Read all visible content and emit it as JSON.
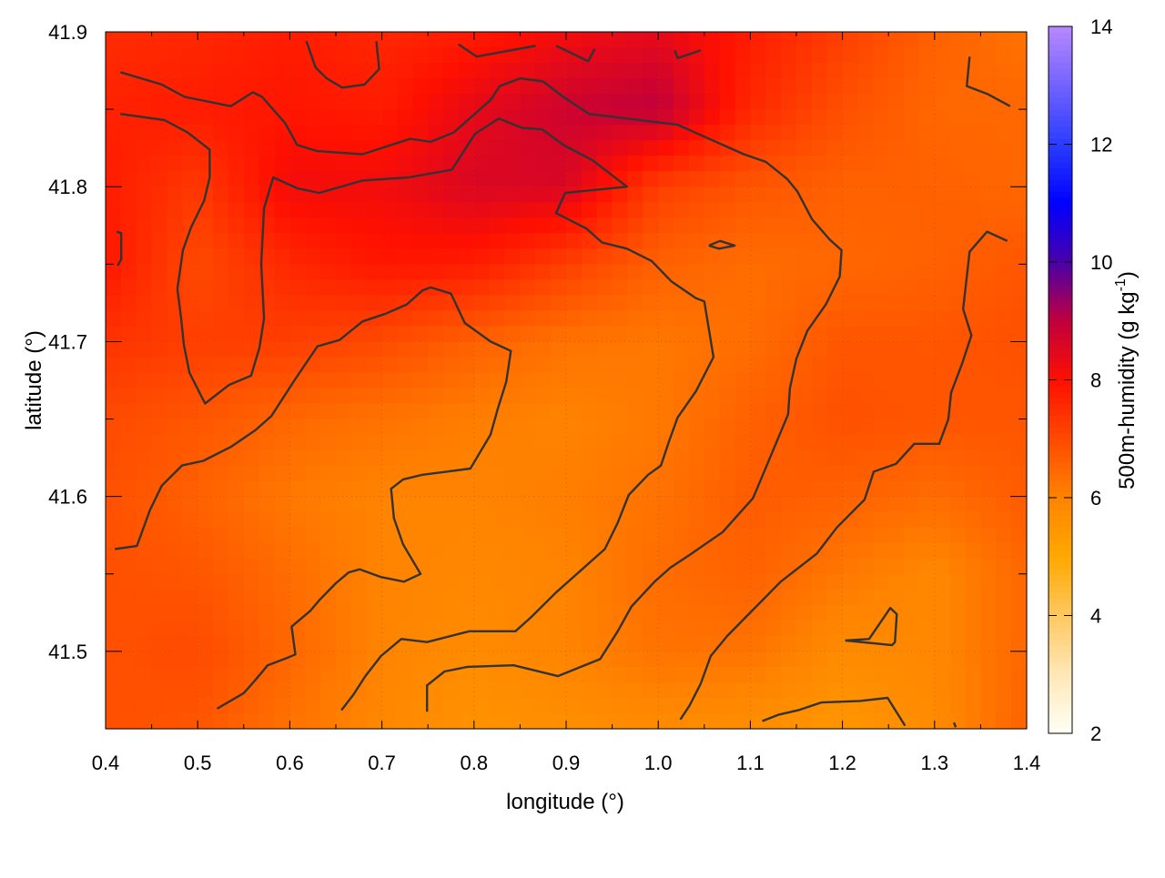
{
  "chart_data": {
    "type": "heatmap",
    "title": "",
    "xlabel": "longitude (°)",
    "ylabel": "latitude (°)",
    "xlim": [
      0.4,
      1.4
    ],
    "ylim": [
      41.45,
      41.9
    ],
    "xticks": [
      "0.4",
      "0.5",
      "0.6",
      "0.7",
      "0.8",
      "0.9",
      "1.0",
      "1.1",
      "1.2",
      "1.3",
      "1.4"
    ],
    "yticks": [
      "41.5",
      "41.6",
      "41.7",
      "41.8",
      "41.9"
    ],
    "grid": true,
    "colorbar": {
      "label_main": "500m-humidity (g kg",
      "label_sup": "-1",
      "label_end": ")",
      "range": [
        2,
        14
      ],
      "ticks": [
        "2",
        "4",
        "6",
        "8",
        "10",
        "12",
        "14"
      ],
      "stops": [
        {
          "v": 2,
          "c": "#fffff6"
        },
        {
          "v": 3,
          "c": "#ffe8b8"
        },
        {
          "v": 4,
          "c": "#ffc860"
        },
        {
          "v": 5,
          "c": "#ffa800"
        },
        {
          "v": 6,
          "c": "#ff8400"
        },
        {
          "v": 7,
          "c": "#ff4a00"
        },
        {
          "v": 8,
          "c": "#ff1000"
        },
        {
          "v": 9,
          "c": "#c0003c"
        },
        {
          "v": 10,
          "c": "#4a00a8"
        },
        {
          "v": 11,
          "c": "#0000ff"
        },
        {
          "v": 12,
          "c": "#2a3cff"
        },
        {
          "v": 14,
          "c": "#b888ff"
        }
      ]
    },
    "grid_lon": [
      0.4,
      0.5,
      0.6,
      0.7,
      0.8,
      0.9,
      1.0,
      1.1,
      1.2,
      1.3,
      1.4
    ],
    "grid_lat": [
      41.9,
      41.85,
      41.8,
      41.75,
      41.7,
      41.65,
      41.6,
      41.55,
      41.5,
      41.45
    ],
    "values": [
      [
        7.5,
        7.6,
        7.8,
        7.6,
        7.8,
        8.2,
        8.4,
        7.8,
        7.2,
        6.6,
        6.3
      ],
      [
        7.7,
        7.8,
        7.9,
        7.8,
        8.4,
        8.8,
        9.0,
        7.6,
        6.9,
        6.5,
        6.5
      ],
      [
        7.8,
        7.3,
        8.2,
        8.2,
        8.6,
        8.6,
        7.2,
        6.8,
        6.6,
        6.6,
        6.5
      ],
      [
        7.9,
        7.0,
        7.6,
        7.9,
        7.8,
        7.2,
        6.6,
        6.4,
        6.5,
        6.6,
        6.8
      ],
      [
        7.4,
        7.2,
        7.2,
        7.0,
        6.6,
        6.3,
        6.2,
        6.4,
        6.8,
        6.8,
        6.9
      ],
      [
        7.0,
        6.8,
        6.5,
        6.3,
        6.1,
        6.0,
        6.2,
        6.6,
        6.9,
        6.8,
        6.8
      ],
      [
        6.9,
        6.6,
        6.2,
        6.0,
        6.0,
        6.1,
        6.3,
        6.7,
        6.6,
        6.4,
        6.7
      ],
      [
        6.9,
        6.8,
        6.4,
        6.0,
        5.9,
        6.0,
        6.4,
        6.6,
        6.2,
        5.9,
        6.5
      ],
      [
        6.9,
        7.0,
        6.5,
        6.0,
        5.8,
        6.0,
        6.3,
        6.3,
        5.8,
        5.9,
        6.5
      ],
      [
        6.9,
        6.8,
        6.3,
        5.9,
        5.6,
        5.7,
        5.8,
        5.7,
        5.5,
        5.8,
        6.6
      ]
    ],
    "contour_color": "#333333",
    "contours": [
      [
        [
          0.416,
          41.874
        ],
        [
          0.461,
          41.866
        ],
        [
          0.486,
          41.858
        ],
        [
          0.536,
          41.852
        ],
        [
          0.56,
          41.861
        ],
        [
          0.57,
          41.858
        ],
        [
          0.595,
          41.841
        ],
        [
          0.608,
          41.827
        ],
        [
          0.63,
          41.823
        ],
        [
          0.679,
          41.821
        ],
        [
          0.731,
          41.831
        ],
        [
          0.753,
          41.829
        ],
        [
          0.778,
          41.835
        ],
        [
          0.818,
          41.856
        ],
        [
          0.828,
          41.865
        ],
        [
          0.85,
          41.87
        ],
        [
          0.875,
          41.868
        ],
        [
          0.897,
          41.858
        ],
        [
          0.925,
          41.847
        ],
        [
          1.021,
          41.84
        ],
        [
          1.093,
          41.821
        ],
        [
          1.117,
          41.816
        ],
        [
          1.14,
          41.805
        ],
        [
          1.151,
          41.797
        ],
        [
          1.167,
          41.779
        ],
        [
          1.186,
          41.766
        ],
        [
          1.199,
          41.759
        ],
        [
          1.197,
          41.742
        ],
        [
          1.182,
          41.724
        ],
        [
          1.162,
          41.707
        ],
        [
          1.15,
          41.689
        ],
        [
          1.143,
          41.67
        ],
        [
          1.141,
          41.653
        ],
        [
          1.115,
          41.616
        ],
        [
          1.103,
          41.599
        ],
        [
          1.07,
          41.577
        ],
        [
          1.036,
          41.563
        ],
        [
          1.013,
          41.554
        ],
        [
          0.996,
          41.545
        ],
        [
          0.971,
          41.529
        ],
        [
          0.956,
          41.513
        ],
        [
          0.937,
          41.495
        ],
        [
          0.891,
          41.484
        ],
        [
          0.843,
          41.491
        ],
        [
          0.793,
          41.49
        ],
        [
          0.768,
          41.487
        ],
        [
          0.749,
          41.478
        ],
        [
          0.749,
          41.461
        ]
      ],
      [
        [
          0.416,
          41.847
        ],
        [
          0.464,
          41.843
        ],
        [
          0.489,
          41.835
        ],
        [
          0.513,
          41.824
        ],
        [
          0.513,
          41.806
        ],
        [
          0.507,
          41.791
        ],
        [
          0.493,
          41.774
        ],
        [
          0.484,
          41.759
        ],
        [
          0.478,
          41.734
        ],
        [
          0.482,
          41.715
        ],
        [
          0.485,
          41.698
        ],
        [
          0.491,
          41.68
        ],
        [
          0.508,
          41.66
        ],
        [
          0.534,
          41.672
        ],
        [
          0.558,
          41.678
        ],
        [
          0.567,
          41.696
        ],
        [
          0.572,
          41.715
        ],
        [
          0.569,
          41.75
        ],
        [
          0.572,
          41.786
        ],
        [
          0.582,
          41.806
        ],
        [
          0.608,
          41.799
        ],
        [
          0.632,
          41.796
        ],
        [
          0.679,
          41.804
        ],
        [
          0.729,
          41.806
        ],
        [
          0.776,
          41.811
        ],
        [
          0.801,
          41.834
        ],
        [
          0.827,
          41.844
        ],
        [
          0.852,
          41.838
        ],
        [
          0.874,
          41.837
        ],
        [
          0.897,
          41.827
        ],
        [
          0.929,
          41.817
        ],
        [
          0.966,
          41.8
        ],
        [
          0.899,
          41.796
        ],
        [
          0.889,
          41.783
        ],
        [
          0.922,
          41.773
        ],
        [
          0.939,
          41.764
        ],
        [
          0.966,
          41.76
        ],
        [
          0.993,
          41.752
        ],
        [
          1.014,
          41.739
        ],
        [
          1.041,
          41.728
        ],
        [
          1.05,
          41.726
        ],
        [
          1.06,
          41.69
        ],
        [
          1.041,
          41.668
        ],
        [
          1.021,
          41.651
        ],
        [
          1.012,
          41.636
        ],
        [
          1.003,
          41.62
        ],
        [
          0.989,
          41.614
        ],
        [
          0.968,
          41.601
        ],
        [
          0.956,
          41.583
        ],
        [
          0.942,
          41.566
        ],
        [
          0.889,
          41.538
        ],
        [
          0.862,
          41.522
        ],
        [
          0.845,
          41.513
        ],
        [
          0.795,
          41.513
        ],
        [
          0.749,
          41.506
        ],
        [
          0.721,
          41.508
        ],
        [
          0.699,
          41.497
        ],
        [
          0.682,
          41.484
        ],
        [
          0.669,
          41.472
        ],
        [
          0.656,
          41.462
        ]
      ],
      [
        [
          0.41,
          41.566
        ],
        [
          0.434,
          41.568
        ],
        [
          0.448,
          41.591
        ],
        [
          0.461,
          41.607
        ],
        [
          0.483,
          41.62
        ],
        [
          0.506,
          41.623
        ],
        [
          0.536,
          41.632
        ],
        [
          0.563,
          41.643
        ],
        [
          0.58,
          41.652
        ],
        [
          0.605,
          41.675
        ],
        [
          0.63,
          41.697
        ],
        [
          0.654,
          41.701
        ],
        [
          0.679,
          41.713
        ],
        [
          0.704,
          41.718
        ],
        [
          0.727,
          41.724
        ],
        [
          0.744,
          41.733
        ],
        [
          0.753,
          41.735
        ],
        [
          0.775,
          41.731
        ],
        [
          0.79,
          41.712
        ],
        [
          0.818,
          41.7
        ],
        [
          0.84,
          41.694
        ],
        [
          0.835,
          41.674
        ],
        [
          0.826,
          41.657
        ],
        [
          0.818,
          41.64
        ],
        [
          0.796,
          41.618
        ],
        [
          0.77,
          41.616
        ],
        [
          0.744,
          41.614
        ],
        [
          0.723,
          41.611
        ],
        [
          0.71,
          41.605
        ],
        [
          0.713,
          41.586
        ],
        [
          0.723,
          41.569
        ],
        [
          0.742,
          41.55
        ],
        [
          0.724,
          41.545
        ],
        [
          0.699,
          41.548
        ],
        [
          0.676,
          41.553
        ],
        [
          0.664,
          41.551
        ],
        [
          0.65,
          41.544
        ],
        [
          0.632,
          41.533
        ],
        [
          0.622,
          41.526
        ],
        [
          0.602,
          41.516
        ],
        [
          0.606,
          41.498
        ],
        [
          0.598,
          41.496
        ],
        [
          0.576,
          41.491
        ],
        [
          0.562,
          41.481
        ],
        [
          0.55,
          41.473
        ],
        [
          0.521,
          41.463
        ]
      ],
      [
        [
          1.379,
          41.765
        ],
        [
          1.357,
          41.771
        ],
        [
          1.338,
          41.758
        ],
        [
          1.331,
          41.721
        ],
        [
          1.34,
          41.704
        ],
        [
          1.33,
          41.686
        ],
        [
          1.318,
          41.667
        ],
        [
          1.315,
          41.65
        ],
        [
          1.305,
          41.634
        ],
        [
          1.278,
          41.634
        ],
        [
          1.258,
          41.621
        ],
        [
          1.234,
          41.616
        ],
        [
          1.224,
          41.598
        ],
        [
          1.194,
          41.58
        ],
        [
          1.172,
          41.563
        ],
        [
          1.133,
          41.545
        ],
        [
          1.095,
          41.522
        ],
        [
          1.075,
          41.51
        ],
        [
          1.057,
          41.497
        ],
        [
          1.046,
          41.479
        ],
        [
          1.034,
          41.465
        ],
        [
          1.024,
          41.456
        ]
      ],
      [
        [
          0.618,
          41.894
        ],
        [
          0.628,
          41.877
        ],
        [
          0.64,
          41.87
        ],
        [
          0.657,
          41.864
        ],
        [
          0.681,
          41.866
        ],
        [
          0.697,
          41.876
        ],
        [
          0.694,
          41.894
        ]
      ],
      [
        [
          0.783,
          41.892
        ],
        [
          0.803,
          41.884
        ],
        [
          0.867,
          41.891
        ]
      ],
      [
        [
          0.889,
          41.891
        ],
        [
          0.924,
          41.881
        ],
        [
          0.931,
          41.889
        ]
      ],
      [
        [
          1.018,
          41.888
        ],
        [
          1.021,
          41.883
        ],
        [
          1.046,
          41.888
        ]
      ],
      [
        [
          1.338,
          41.884
        ],
        [
          1.335,
          41.865
        ],
        [
          1.357,
          41.86
        ],
        [
          1.382,
          41.852
        ]
      ],
      [
        [
          0.412,
          41.771
        ],
        [
          0.417,
          41.77
        ],
        [
          0.417,
          41.753
        ],
        [
          0.413,
          41.749
        ]
      ],
      [
        [
          1.055,
          41.762
        ],
        [
          1.067,
          41.765
        ],
        [
          1.083,
          41.762
        ],
        [
          1.066,
          41.76
        ],
        [
          1.055,
          41.762
        ]
      ],
      [
        [
          1.203,
          41.507
        ],
        [
          1.229,
          41.508
        ],
        [
          1.252,
          41.528
        ],
        [
          1.259,
          41.524
        ],
        [
          1.257,
          41.506
        ],
        [
          1.254,
          41.504
        ],
        [
          1.204,
          41.507
        ]
      ],
      [
        [
          1.113,
          41.455
        ],
        [
          1.13,
          41.459
        ],
        [
          1.152,
          41.462
        ],
        [
          1.177,
          41.467
        ],
        [
          1.219,
          41.468
        ],
        [
          1.249,
          41.47
        ],
        [
          1.268,
          41.452
        ]
      ],
      [
        [
          1.321,
          41.454
        ],
        [
          1.323,
          41.451
        ]
      ]
    ]
  }
}
